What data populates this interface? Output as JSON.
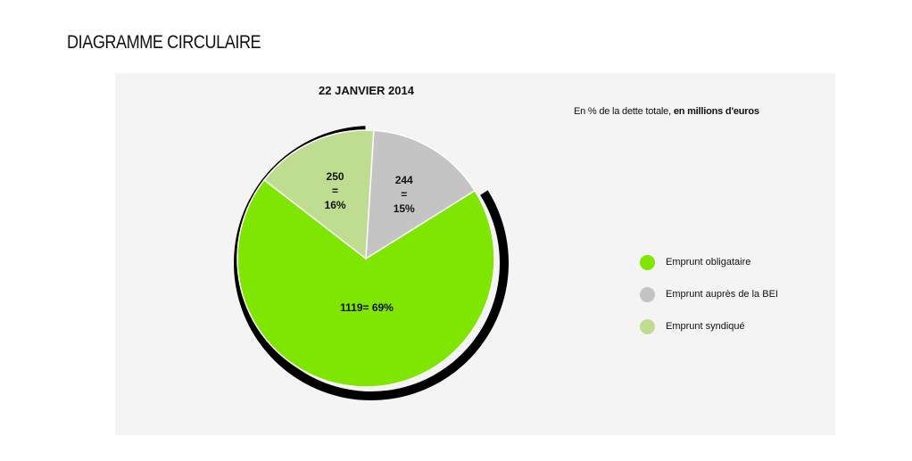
{
  "page": {
    "title": "DIAGRAMME CIRCULAIRE"
  },
  "chart_data": {
    "type": "pie",
    "title": "22 JANVIER 2014",
    "subtitle": {
      "prefix": "En % de la dette totale, ",
      "bold": "en millions d'euros"
    },
    "slices": [
      {
        "name": "Emprunt obligataire",
        "value": 1119,
        "percent": 69,
        "label": [
          "1119= 69%"
        ],
        "color": "#7ee600"
      },
      {
        "name": "Emprunt  auprès de la BEI",
        "value": 244,
        "percent": 15,
        "label": [
          "244",
          "=",
          "15%"
        ],
        "color": "#c4c4c4"
      },
      {
        "name": "Emprunt syndiqué",
        "value": 250,
        "percent": 16,
        "label": [
          "250",
          "=",
          "16%"
        ],
        "color": "#bedd90"
      }
    ],
    "outer_ring_color": "#000000",
    "legend_position": "right"
  }
}
